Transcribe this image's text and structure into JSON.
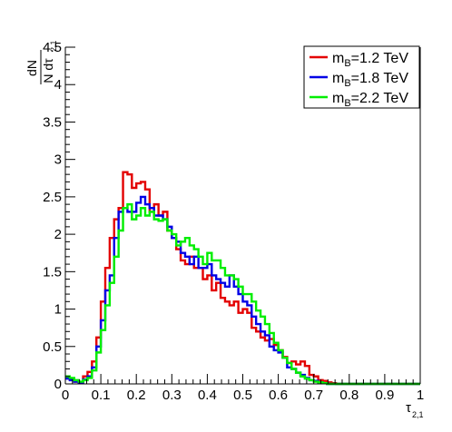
{
  "chart_data": {
    "type": "line",
    "style": "step-histogram",
    "title": "",
    "xlabel": {
      "main": "τ",
      "sub": "2,1"
    },
    "ylabel": {
      "numerator": "dN",
      "denominator": "N dτ",
      "denominator_sub": "2,1"
    },
    "xlim": [
      0,
      1
    ],
    "ylim": [
      0,
      4.5
    ],
    "xticks": [
      "0",
      "0.1",
      "0.2",
      "0.3",
      "0.4",
      "0.5",
      "0.6",
      "0.7",
      "0.8",
      "0.9",
      "1"
    ],
    "yticks": [
      "0",
      "0.5",
      "1",
      "1.5",
      "2",
      "2.5",
      "3",
      "3.5",
      "4",
      "4.5"
    ],
    "grid": false,
    "legend_position": "top-right",
    "bin_width": 0.0125,
    "series": [
      {
        "name": "m_B=1.2 TeV",
        "legend": {
          "m": "m",
          "sub": "B",
          "rest": "=1.2 TeV"
        },
        "color": "#e30000",
        "values": [
          0.08,
          0.06,
          0.03,
          0.02,
          0.1,
          0.16,
          0.3,
          0.62,
          1.1,
          1.55,
          1.95,
          2.2,
          2.35,
          2.83,
          2.8,
          2.62,
          2.68,
          2.7,
          2.6,
          2.3,
          2.4,
          2.25,
          2.3,
          2.05,
          1.95,
          1.8,
          1.65,
          1.6,
          1.7,
          1.55,
          1.55,
          1.4,
          1.45,
          1.25,
          1.35,
          1.15,
          1.1,
          1.05,
          1.1,
          0.95,
          1.0,
          0.95,
          0.75,
          0.7,
          0.62,
          0.58,
          0.6,
          0.52,
          0.45,
          0.36,
          0.28,
          0.3,
          0.26,
          0.3,
          0.24,
          0.12,
          0.1,
          0.05,
          0.04,
          0.02,
          0.01,
          0.0,
          0.0,
          0.0,
          0.0,
          0.0,
          0.0,
          0.0,
          0.0,
          0.0,
          0.0,
          0.0,
          0.0,
          0.0,
          0.0,
          0.0,
          0.0,
          0.0,
          0.0,
          0.0
        ]
      },
      {
        "name": "m_B=1.8 TeV",
        "legend": {
          "m": "m",
          "sub": "B",
          "rest": "=1.8 TeV"
        },
        "color": "#0000e6",
        "values": [
          0.07,
          0.05,
          0.03,
          0.02,
          0.06,
          0.1,
          0.22,
          0.5,
          0.85,
          1.25,
          1.45,
          1.95,
          2.3,
          2.35,
          2.3,
          2.3,
          2.42,
          2.5,
          2.4,
          2.35,
          2.25,
          2.25,
          2.2,
          2.1,
          1.95,
          1.9,
          1.75,
          1.7,
          1.6,
          1.7,
          1.55,
          1.55,
          1.6,
          1.45,
          1.4,
          1.35,
          1.3,
          1.45,
          1.3,
          1.2,
          1.1,
          1.05,
          0.9,
          0.8,
          0.7,
          0.65,
          0.5,
          0.45,
          0.42,
          0.35,
          0.22,
          0.2,
          0.15,
          0.12,
          0.08,
          0.05,
          0.04,
          0.02,
          0.01,
          0.0,
          0.0,
          0.0,
          0.0,
          0.0,
          0.0,
          0.0,
          0.0,
          0.0,
          0.0,
          0.0,
          0.0,
          0.0,
          0.0,
          0.0,
          0.0,
          0.0,
          0.0,
          0.0,
          0.0,
          0.0
        ]
      },
      {
        "name": "m_B=2.2 TeV",
        "legend": {
          "m": "m",
          "sub": "B",
          "rest": "=2.2 TeV"
        },
        "color": "#00ee00",
        "values": [
          0.1,
          0.08,
          0.05,
          0.03,
          0.05,
          0.08,
          0.18,
          0.42,
          0.72,
          1.05,
          1.35,
          1.7,
          2.05,
          2.35,
          2.4,
          2.2,
          2.25,
          2.35,
          2.25,
          2.3,
          2.2,
          2.18,
          2.2,
          2.05,
          2.0,
          1.85,
          1.9,
          1.95,
          1.85,
          1.8,
          1.7,
          1.6,
          1.75,
          1.65,
          1.65,
          1.55,
          1.45,
          1.45,
          1.4,
          1.3,
          1.2,
          1.2,
          1.1,
          0.98,
          0.9,
          0.8,
          0.68,
          0.55,
          0.45,
          0.35,
          0.28,
          0.2,
          0.15,
          0.1,
          0.07,
          0.05,
          0.03,
          0.02,
          0.01,
          0.0,
          0.0,
          0.0,
          0.0,
          0.0,
          0.0,
          0.0,
          0.0,
          0.0,
          0.0,
          0.0,
          0.0,
          0.0,
          0.0,
          0.0,
          0.0,
          0.0,
          0.0,
          0.0,
          0.0,
          0.0
        ]
      }
    ]
  }
}
